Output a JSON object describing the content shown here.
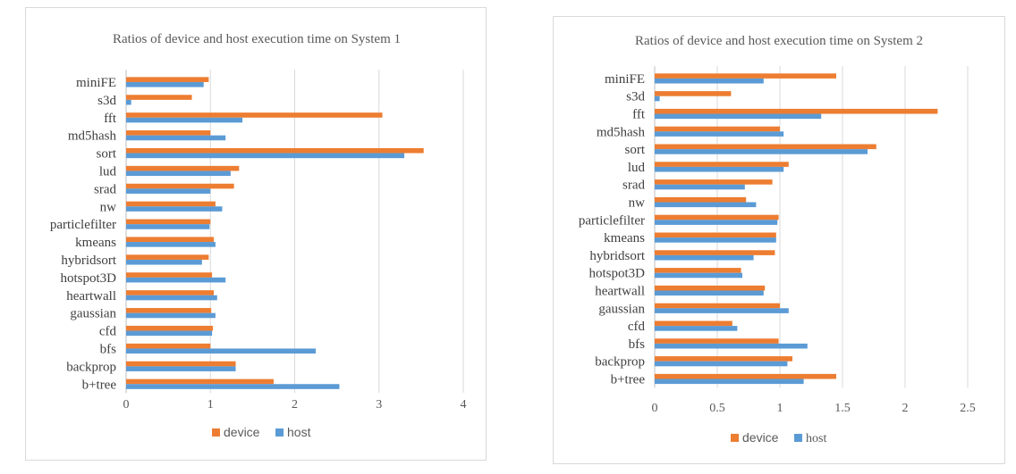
{
  "colors": {
    "device": "#ED7D31",
    "host": "#5B9BD5",
    "grid": "#d9d9d9",
    "axis": "#bfbfbf"
  },
  "chart_data": [
    {
      "type": "bar",
      "orientation": "horizontal",
      "title": "Ratios of device and host execution time on System 1",
      "categories": [
        "miniFE",
        "s3d",
        "fft",
        "md5hash",
        "sort",
        "lud",
        "srad",
        "nw",
        "particlefilter",
        "kmeans",
        "hybridsort",
        "hotspot3D",
        "heartwall",
        "gaussian",
        "cfd",
        "bfs",
        "backprop",
        "b+tree"
      ],
      "series": [
        {
          "name": "device",
          "values": [
            0.98,
            0.78,
            3.04,
            1.0,
            3.53,
            1.34,
            1.28,
            1.06,
            1.0,
            1.04,
            0.98,
            1.02,
            1.04,
            1.01,
            1.03,
            1.0,
            1.3,
            1.75
          ]
        },
        {
          "name": "host",
          "values": [
            0.92,
            0.06,
            1.38,
            1.18,
            3.3,
            1.24,
            1.0,
            1.14,
            0.99,
            1.06,
            0.9,
            1.18,
            1.08,
            1.06,
            1.02,
            2.25,
            1.3,
            2.53
          ]
        }
      ],
      "xlim": [
        0,
        4
      ],
      "xticks": [
        "0",
        "1",
        "2",
        "3",
        "4"
      ],
      "grid": true,
      "legend": "bottom",
      "legend_labels": {
        "device": "device",
        "host": "host"
      }
    },
    {
      "type": "bar",
      "orientation": "horizontal",
      "title": "Ratios of device and host execution time on System 2",
      "categories": [
        "miniFE",
        "s3d",
        "fft",
        "md5hash",
        "sort",
        "lud",
        "srad",
        "nw",
        "particlefilter",
        "kmeans",
        "hybridsort",
        "hotspot3D",
        "heartwall",
        "gaussian",
        "cfd",
        "bfs",
        "backprop",
        "b+tree"
      ],
      "series": [
        {
          "name": "device",
          "values": [
            1.45,
            0.61,
            2.26,
            1.0,
            1.77,
            1.07,
            0.94,
            0.73,
            0.99,
            0.97,
            0.96,
            0.69,
            0.88,
            1.0,
            0.62,
            0.99,
            1.1,
            1.45
          ]
        },
        {
          "name": "host",
          "values": [
            0.87,
            0.04,
            1.33,
            1.03,
            1.7,
            1.03,
            0.72,
            0.81,
            0.98,
            0.97,
            0.79,
            0.7,
            0.87,
            1.07,
            0.66,
            1.22,
            1.06,
            1.19
          ]
        }
      ],
      "xlim": [
        0,
        2.5
      ],
      "xticks": [
        "0",
        "0.5",
        "1",
        "1.5",
        "2",
        "2.5"
      ],
      "grid": true,
      "legend": "bottom",
      "legend_labels": {
        "device": "device",
        "host": "host"
      }
    }
  ]
}
